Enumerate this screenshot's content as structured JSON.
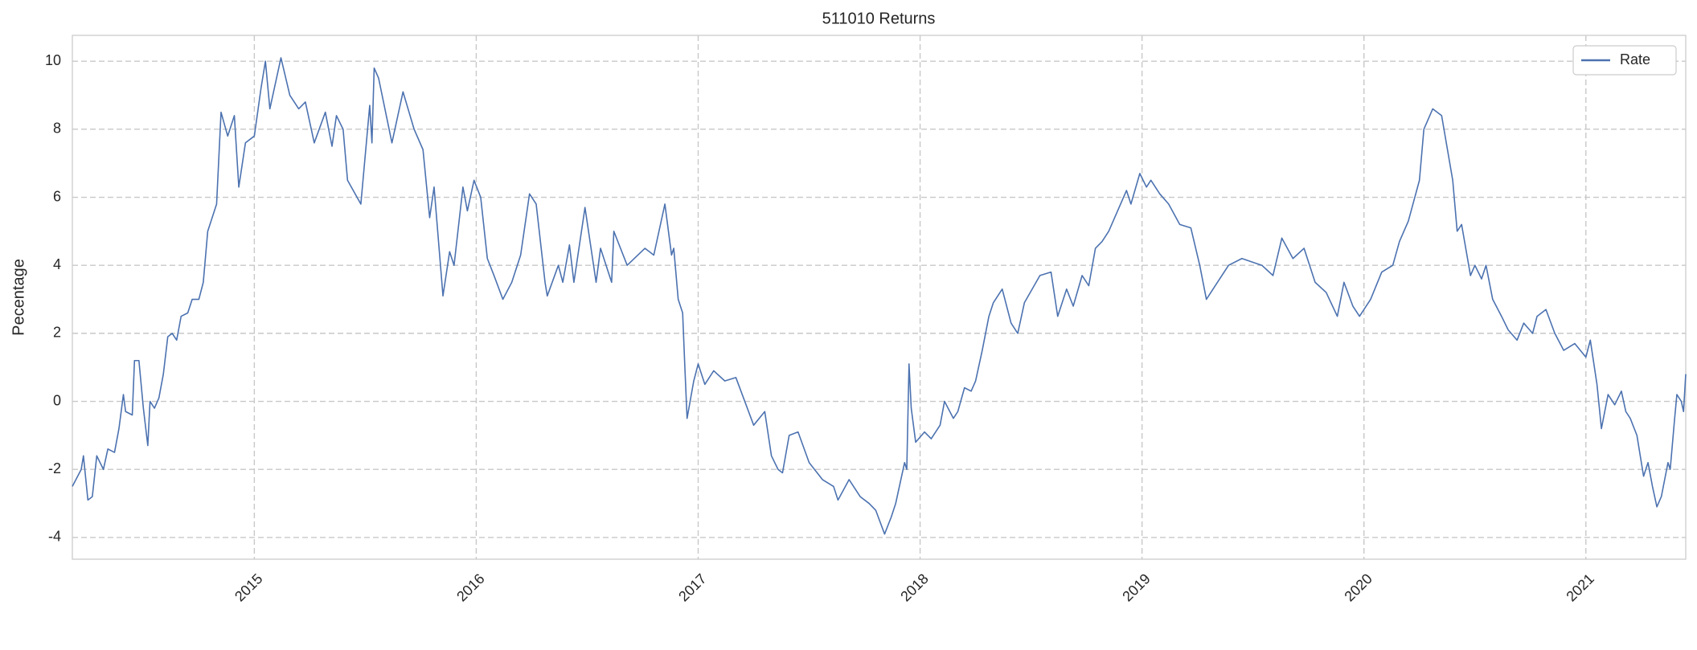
{
  "chart_data": {
    "type": "line",
    "title": "511010 Returns",
    "y_label": "Pecentage",
    "x": [
      2014.18,
      2014.22,
      2014.23,
      2014.25,
      2014.27,
      2014.29,
      2014.32,
      2014.34,
      2014.37,
      2014.39,
      2014.41,
      2014.42,
      2014.45,
      2014.46,
      2014.48,
      2014.5,
      2014.52,
      2014.53,
      2014.55,
      2014.57,
      2014.59,
      2014.61,
      2014.63,
      2014.65,
      2014.67,
      2014.7,
      2014.72,
      2014.75,
      2014.77,
      2014.79,
      2014.83,
      2014.85,
      2014.88,
      2014.91,
      2014.93,
      2014.96,
      2015.0,
      2015.03,
      2015.05,
      2015.07,
      2015.12,
      2015.16,
      2015.2,
      2015.23,
      2015.27,
      2015.32,
      2015.35,
      2015.37,
      2015.4,
      2015.42,
      2015.48,
      2015.52,
      2015.53,
      2015.54,
      2015.56,
      2015.62,
      2015.67,
      2015.72,
      2015.76,
      2015.79,
      2015.81,
      2015.85,
      2015.88,
      2015.9,
      2015.94,
      2015.96,
      2015.99,
      2016.02,
      2016.05,
      2016.08,
      2016.12,
      2016.16,
      2016.2,
      2016.24,
      2016.27,
      2016.31,
      2016.32,
      2016.37,
      2016.39,
      2016.42,
      2016.44,
      2016.49,
      2016.54,
      2016.56,
      2016.61,
      2016.62,
      2016.68,
      2016.76,
      2016.8,
      2016.85,
      2016.88,
      2016.89,
      2016.91,
      2016.93,
      2016.94,
      2016.95,
      2016.98,
      2017.0,
      2017.03,
      2017.07,
      2017.12,
      2017.17,
      2017.21,
      2017.25,
      2017.3,
      2017.33,
      2017.36,
      2017.38,
      2017.41,
      2017.45,
      2017.5,
      2017.56,
      2017.61,
      2017.63,
      2017.68,
      2017.73,
      2017.77,
      2017.8,
      2017.84,
      2017.87,
      2017.89,
      2017.91,
      2017.93,
      2017.94,
      2017.95,
      2017.96,
      2017.98,
      2018.02,
      2018.05,
      2018.09,
      2018.11,
      2018.15,
      2018.17,
      2018.2,
      2018.23,
      2018.25,
      2018.28,
      2018.31,
      2018.33,
      2018.37,
      2018.41,
      2018.44,
      2018.47,
      2018.54,
      2018.59,
      2018.62,
      2018.66,
      2018.69,
      2018.73,
      2018.76,
      2018.79,
      2018.82,
      2018.85,
      2018.89,
      2018.93,
      2018.95,
      2018.99,
      2019.02,
      2019.04,
      2019.08,
      2019.12,
      2019.17,
      2019.22,
      2019.26,
      2019.29,
      2019.34,
      2019.39,
      2019.45,
      2019.54,
      2019.59,
      2019.63,
      2019.68,
      2019.73,
      2019.78,
      2019.83,
      2019.88,
      2019.91,
      2019.95,
      2019.98,
      2020.03,
      2020.08,
      2020.13,
      2020.16,
      2020.2,
      2020.25,
      2020.27,
      2020.31,
      2020.35,
      2020.4,
      2020.42,
      2020.44,
      2020.48,
      2020.5,
      2020.53,
      2020.55,
      2020.58,
      2020.62,
      2020.65,
      2020.69,
      2020.72,
      2020.76,
      2020.78,
      2020.82,
      2020.86,
      2020.9,
      2020.95,
      2021.0,
      2021.02,
      2021.05,
      2021.07,
      2021.1,
      2021.13,
      2021.16,
      2021.18,
      2021.2,
      2021.23,
      2021.26,
      2021.28,
      2021.3,
      2021.32,
      2021.34,
      2021.37,
      2021.38,
      2021.4,
      2021.41,
      2021.43,
      2021.44,
      2021.45
    ],
    "series": [
      {
        "name": "Rate",
        "color": "#4c72b0",
        "values": [
          -2.5,
          -2.0,
          -1.6,
          -2.9,
          -2.8,
          -1.6,
          -2.0,
          -1.4,
          -1.5,
          -0.8,
          0.2,
          -0.3,
          -0.4,
          1.2,
          1.2,
          -0.2,
          -1.3,
          0.0,
          -0.2,
          0.1,
          0.8,
          1.9,
          2.0,
          1.8,
          2.5,
          2.6,
          3.0,
          3.0,
          3.5,
          5.0,
          5.8,
          8.5,
          7.8,
          8.4,
          6.3,
          7.6,
          7.8,
          9.2,
          10.0,
          8.6,
          10.1,
          9.0,
          8.6,
          8.8,
          7.6,
          8.5,
          7.5,
          8.4,
          8.0,
          6.5,
          5.8,
          8.7,
          7.6,
          9.8,
          9.5,
          7.6,
          9.1,
          8.0,
          7.4,
          5.4,
          6.3,
          3.1,
          4.4,
          4.0,
          6.3,
          5.6,
          6.5,
          6.0,
          4.2,
          3.7,
          3.0,
          3.5,
          4.3,
          6.1,
          5.8,
          3.5,
          3.1,
          4.0,
          3.5,
          4.6,
          3.5,
          5.7,
          3.5,
          4.5,
          3.5,
          5.0,
          4.0,
          4.5,
          4.3,
          5.8,
          4.3,
          4.5,
          3.0,
          2.6,
          1.0,
          -0.5,
          0.6,
          1.1,
          0.5,
          0.9,
          0.6,
          0.7,
          0.0,
          -0.7,
          -0.3,
          -1.6,
          -2.0,
          -2.1,
          -1.0,
          -0.9,
          -1.8,
          -2.3,
          -2.5,
          -2.9,
          -2.3,
          -2.8,
          -3.0,
          -3.2,
          -3.9,
          -3.4,
          -3.0,
          -2.4,
          -1.8,
          -2.0,
          1.1,
          -0.2,
          -1.2,
          -0.9,
          -1.1,
          -0.7,
          0.0,
          -0.5,
          -0.3,
          0.4,
          0.3,
          0.6,
          1.5,
          2.5,
          2.9,
          3.3,
          2.3,
          2.0,
          2.9,
          3.7,
          3.8,
          2.5,
          3.3,
          2.8,
          3.7,
          3.4,
          4.5,
          4.7,
          5.0,
          5.6,
          6.2,
          5.8,
          6.7,
          6.3,
          6.5,
          6.1,
          5.8,
          5.2,
          5.1,
          4.0,
          3.0,
          3.5,
          4.0,
          4.2,
          4.0,
          3.7,
          4.8,
          4.2,
          4.5,
          3.5,
          3.2,
          2.5,
          3.5,
          2.8,
          2.5,
          3.0,
          3.8,
          4.0,
          4.7,
          5.3,
          6.5,
          8.0,
          8.6,
          8.4,
          6.5,
          5.0,
          5.2,
          3.7,
          4.0,
          3.6,
          4.0,
          3.0,
          2.5,
          2.1,
          1.8,
          2.3,
          2.0,
          2.5,
          2.7,
          2.0,
          1.5,
          1.7,
          1.3,
          1.8,
          0.5,
          -0.8,
          0.2,
          -0.1,
          0.3,
          -0.3,
          -0.5,
          -1.0,
          -2.2,
          -1.8,
          -2.5,
          -3.1,
          -2.8,
          -1.8,
          -2.0,
          -0.5,
          0.2,
          0.0,
          -0.3,
          0.8
        ]
      }
    ],
    "xlim": [
      2014.18,
      2021.45
    ],
    "xticks": [
      2015,
      2016,
      2017,
      2018,
      2019,
      2020,
      2021
    ],
    "ylim": [
      -4.64,
      10.76
    ],
    "yticks": [
      -4,
      -2,
      0,
      2,
      4,
      6,
      8,
      10
    ],
    "grid": true,
    "legend": "upper right"
  }
}
